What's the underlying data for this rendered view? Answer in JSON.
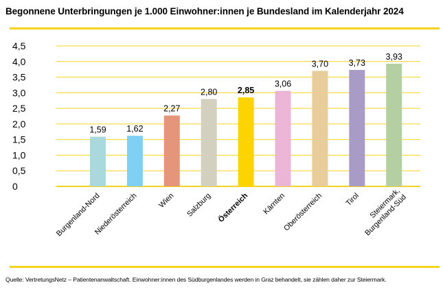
{
  "header": {
    "title": "Begonnene Unterbringungen je 1.000 Einwohner:innen je Bundesland im Kalenderjahr 2024"
  },
  "footer": {
    "source": "Quelle: VertretungsNetz – Patientenanwaltschaft. Einwohner:innen des Südburgenlandes werden in Graz behandelt, sie zählen daher zur Steiermark."
  },
  "colors": {
    "accent_rule": "#f5d21c",
    "gridline": "#f5d21c"
  },
  "chart_data": {
    "type": "bar",
    "title": "Begonnene Unterbringungen je 1.000 Einwohner:innen je Bundesland im Kalenderjahr 2024",
    "xlabel": "",
    "ylabel": "",
    "ylim": [
      0,
      4.5
    ],
    "yticks": [
      "0",
      "0,5",
      "1,0",
      "1,5",
      "2,0",
      "2,5",
      "3,0",
      "3,5",
      "4,0",
      "4,5"
    ],
    "grid": true,
    "legend": "none",
    "categories": [
      {
        "lines": [
          "Burgenland-Nord"
        ],
        "bold": false
      },
      {
        "lines": [
          "Niederösterreich"
        ],
        "bold": false
      },
      {
        "lines": [
          "Wien"
        ],
        "bold": false
      },
      {
        "lines": [
          "Salzburg"
        ],
        "bold": false
      },
      {
        "lines": [
          "Österreich"
        ],
        "bold": true
      },
      {
        "lines": [
          "Kärnten"
        ],
        "bold": false
      },
      {
        "lines": [
          "Oberösterreich"
        ],
        "bold": false
      },
      {
        "lines": [
          "Tirol"
        ],
        "bold": false
      },
      {
        "lines": [
          "Steiermark,",
          "Burgenland-Süd"
        ],
        "bold": false
      }
    ],
    "values": [
      1.59,
      1.62,
      2.27,
      2.8,
      2.85,
      3.06,
      3.7,
      3.73,
      3.93
    ],
    "value_labels": [
      "1,59",
      "1,62",
      "2,27",
      "2,80",
      "2,85",
      "3,06",
      "3,70",
      "3,73",
      "3,93"
    ],
    "colors": [
      "#a9d8dd",
      "#7fd0f2",
      "#e5957a",
      "#d3d0c0",
      "#fdd400",
      "#ebb6d6",
      "#e8cc9a",
      "#a89cc7",
      "#b4d0a2"
    ]
  }
}
